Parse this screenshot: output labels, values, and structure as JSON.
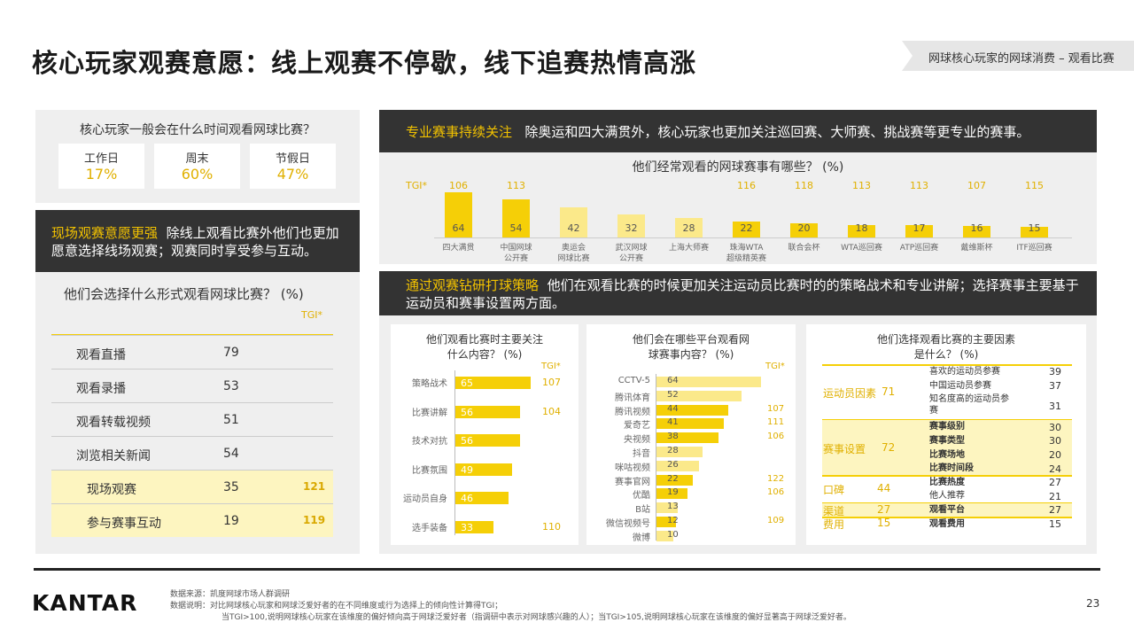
{
  "page": {
    "title": "核心玩家观赛意愿：线上观赛不停歇，线下追赛热情高涨",
    "tag": "网球核心玩家的网球消费 – 观看比赛",
    "page_number": "23",
    "logo": "KANTAR",
    "source": "数据来源：凯度网球市场人群调研",
    "note1": "数据说明：对比网球核心玩家和网球泛爱好者的在不同维度或行为选择上的倾向性计算得TGI；",
    "note2": "当TGI>100,说明网球核心玩家在该维度的偏好倾向高于网球泛爱好者（指调研中表示对网球感兴趣的人）；当TGI>105,说明网球核心玩家在该维度的偏好显著高于网球泛爱好者。"
  },
  "time": {
    "question": "核心玩家一般会在什么时间观看网球比赛？",
    "items": [
      {
        "label": "工作日",
        "value": "17%"
      },
      {
        "label": "周末",
        "value": "60%"
      },
      {
        "label": "节假日",
        "value": "47%"
      }
    ]
  },
  "onsite": {
    "highlight": "现场观赛意愿更强",
    "text": "除线上观看比赛外他们也更加愿意选择线场观赛；观赛同时享受参与互动。",
    "question": "他们会选择什么形式观看网球比赛？ (%)",
    "tgi_label": "TGI*"
  },
  "pro": {
    "highlight": "专业赛事持续关注",
    "text": "除奥运和四大满贯外，核心玩家也更加关注巡回赛、大师赛、挑战赛等更专业的赛事。",
    "question": "他们经常观看的网球赛事有哪些？ (%)",
    "tgi_label": "TGI*"
  },
  "strategy": {
    "highlight": "通过观赛钻研打球策略",
    "text": "他们在观看比赛的时候更加关注运动员比赛时的的策略战术和专业讲解；选择赛事主要基于运动员和赛事设置两方面。",
    "focus_title_1": "他们观看比赛时主要关注",
    "focus_title_2": "什么内容？ (%)",
    "platform_title_1": "他们会在哪些平台观看网",
    "platform_title_2": "球赛事内容？ (%)",
    "factor_title_1": "他们选择观看比赛的主要因素",
    "factor_title_2": "是什么？ (%)",
    "tgi_label": "TGI*"
  },
  "chart_data": [
    {
      "type": "table",
      "title": "他们会选择什么形式观看网球比赛？ (%)",
      "rows": [
        {
          "label": "观看直播",
          "value": 79,
          "tgi": ""
        },
        {
          "label": "观看录播",
          "value": 53,
          "tgi": ""
        },
        {
          "label": "观看转载视频",
          "value": 51,
          "tgi": ""
        },
        {
          "label": "浏览相关新闻",
          "value": 54,
          "tgi": ""
        },
        {
          "label": "现场观赛",
          "value": 35,
          "tgi": "121"
        },
        {
          "label": "参与赛事互动",
          "value": 19,
          "tgi": "119"
        }
      ]
    },
    {
      "type": "bar",
      "title": "他们经常观看的网球赛事有哪些？ (%)",
      "categories": [
        "四大满贯",
        "中国网球公开赛",
        "奥运会网球比赛",
        "武汉网球公开赛",
        "上海大师赛",
        "珠海WTA超级精英赛",
        "联合会杯",
        "WTA巡回赛",
        "ATP巡回赛",
        "戴维斯杯",
        "ITF巡回赛"
      ],
      "label_lines": [
        [
          "四大满贯"
        ],
        [
          "中国网球",
          "公开赛"
        ],
        [
          "奥运会",
          "网球比赛"
        ],
        [
          "武汉网球",
          "公开赛"
        ],
        [
          "上海大师赛"
        ],
        [
          "珠海WTA",
          "超级精英赛"
        ],
        [
          "联合会杯"
        ],
        [
          "WTA巡回赛"
        ],
        [
          "ATP巡回赛"
        ],
        [
          "戴维斯杯"
        ],
        [
          "ITF巡回赛"
        ]
      ],
      "values": [
        64,
        54,
        42,
        32,
        28,
        22,
        20,
        18,
        17,
        16,
        15
      ],
      "tgi": [
        "106",
        "113",
        "",
        "",
        "",
        "116",
        "118",
        "113",
        "113",
        "107",
        "115"
      ],
      "highlight": [
        true,
        true,
        false,
        false,
        false,
        true,
        true,
        true,
        true,
        true,
        true
      ]
    },
    {
      "type": "bar",
      "title": "他们观看比赛时主要关注什么内容？ (%)",
      "categories": [
        "策略战术",
        "比赛讲解",
        "技术对抗",
        "比赛氛围",
        "运动员自身",
        "选手装备"
      ],
      "values": [
        65,
        56,
        56,
        49,
        46,
        33
      ],
      "tgi": [
        "107",
        "104",
        "",
        "",
        "",
        "110"
      ]
    },
    {
      "type": "bar",
      "title": "他们会在哪些平台观看网球赛事内容？ (%)",
      "categories": [
        "CCTV-5",
        "腾讯体育",
        "腾讯视频",
        "爱奇艺",
        "央视频",
        "抖音",
        "咪咕视频",
        "赛事官网",
        "优酷",
        "B站",
        "微信视频号",
        "微博"
      ],
      "values": [
        64,
        52,
        44,
        41,
        38,
        28,
        26,
        22,
        19,
        13,
        12,
        10
      ],
      "tgi": [
        "",
        "",
        "107",
        "111",
        "106",
        "",
        "",
        "122",
        "106",
        "",
        "109",
        ""
      ],
      "highlight": [
        false,
        false,
        true,
        true,
        true,
        false,
        false,
        true,
        true,
        false,
        true,
        false
      ]
    },
    {
      "type": "table",
      "title": "他们选择观看比赛的主要因素是什么？ (%)",
      "groups": [
        {
          "name": "运动员因素",
          "value": "71",
          "highlight": false,
          "items": [
            {
              "label": "喜欢的运动员参赛",
              "value": "39",
              "bold": false
            },
            {
              "label": "中国运动员参赛",
              "value": "37",
              "bold": false
            },
            {
              "label": "知名度高的运动员参赛",
              "value": "31",
              "bold": false
            }
          ]
        },
        {
          "name": "赛事设置",
          "value": "72",
          "highlight": true,
          "items": [
            {
              "label": "赛事级别",
              "value": "30",
              "bold": true
            },
            {
              "label": "赛事类型",
              "value": "30",
              "bold": true
            },
            {
              "label": "比赛场地",
              "value": "20",
              "bold": true
            },
            {
              "label": "比赛时间段",
              "value": "24",
              "bold": true
            }
          ]
        },
        {
          "name": "口碑",
          "value": "44",
          "highlight": false,
          "items": [
            {
              "label": "比赛热度",
              "value": "27",
              "bold": true
            },
            {
              "label": "他人推荐",
              "value": "21",
              "bold": false
            }
          ]
        },
        {
          "name": "渠道",
          "value": "27",
          "highlight": true,
          "items": [
            {
              "label": "观看平台",
              "value": "27",
              "bold": true
            }
          ]
        },
        {
          "name": "费用",
          "value": "15",
          "highlight": false,
          "items": [
            {
              "label": "观看费用",
              "value": "15",
              "bold": true
            }
          ]
        }
      ]
    }
  ]
}
